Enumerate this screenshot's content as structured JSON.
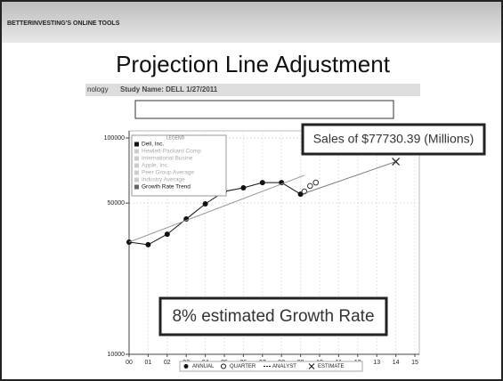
{
  "slide": {
    "header": "BETTERINVESTING'S ONLINE TOOLS",
    "title": "Projection Line Adjustment",
    "tab_fragment": "nology",
    "study_name": "Study Name: DELL 1/27/2011"
  },
  "chart_data": {
    "type": "line",
    "xlim": [
      0,
      15
    ],
    "xticks": [
      {
        "value": 0,
        "label": "00"
      },
      {
        "value": 1,
        "label": "01"
      },
      {
        "value": 2,
        "label": "02"
      },
      {
        "value": 3,
        "label": "03"
      },
      {
        "value": 4,
        "label": "04"
      },
      {
        "value": 5,
        "label": "05"
      },
      {
        "value": 6,
        "label": "06"
      },
      {
        "value": 7,
        "label": "07"
      },
      {
        "value": 8,
        "label": "08"
      },
      {
        "value": 9,
        "label": "09"
      },
      {
        "value": 10,
        "label": "10"
      },
      {
        "value": 11,
        "label": "11"
      },
      {
        "value": 12,
        "label": "12"
      },
      {
        "value": 13,
        "label": "13"
      },
      {
        "value": 14,
        "label": "14"
      },
      {
        "value": 15,
        "label": "15"
      }
    ],
    "ylim": [
      10000,
      100000
    ],
    "yticks": [
      10000,
      50000,
      100000
    ],
    "log_y": true,
    "grid": true,
    "series": [
      {
        "name": "ANNUAL",
        "color": "#111111",
        "marker": "dot",
        "x": [
          0,
          1,
          2,
          3,
          4,
          5,
          6,
          7,
          8,
          9
        ],
        "values": [
          33000,
          32100,
          35900,
          42200,
          49600,
          56600,
          58800,
          62200,
          62200,
          55000
        ]
      },
      {
        "name": "QUARTER",
        "color": "#333333",
        "marker": "circle",
        "x": [
          9.2,
          9.5,
          9.8
        ],
        "values": [
          56600,
          60000,
          62200
        ]
      },
      {
        "name": "Growth Rate Trend",
        "color": "#999999",
        "marker": "none",
        "x": [
          0,
          9.2
        ],
        "values": [
          33000,
          67200
        ]
      },
      {
        "name": "ESTIMATE",
        "color": "#777777",
        "marker": "cross-end",
        "x": [
          9.2,
          14
        ],
        "values": [
          55500,
          77730.39
        ]
      }
    ],
    "legend_title": "LEGEND",
    "legend_items": [
      "Dell, Inc.",
      "Hewlett-Packard Comp",
      "International Busine",
      "Apple, Inc.",
      "Peer Group Average",
      "Industry Average"
    ],
    "analyst_label": "ANALYST",
    "annotations": [
      "Sales of $77730.39 (Millions)",
      "8% estimated Growth Rate"
    ]
  }
}
